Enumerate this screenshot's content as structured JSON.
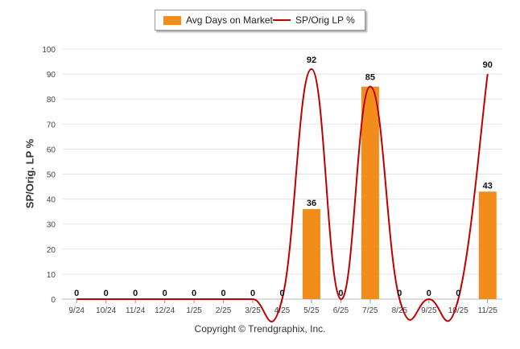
{
  "chart_data": {
    "type": "bar",
    "categories": [
      "9/24",
      "10/24",
      "11/24",
      "12/24",
      "1/25",
      "2/25",
      "3/25",
      "4/25",
      "5/25",
      "6/25",
      "7/25",
      "8/25",
      "9/25",
      "10/25",
      "11/25"
    ],
    "series": [
      {
        "name": "Avg Days on Market",
        "type": "bar",
        "color": "#f28c1b",
        "values": [
          0,
          0,
          0,
          0,
          0,
          0,
          0,
          0,
          36,
          0,
          85,
          0,
          0,
          0,
          43
        ]
      },
      {
        "name": "SP/Orig LP %",
        "type": "line",
        "color": "#c00000",
        "values": [
          0,
          0,
          0,
          0,
          0,
          0,
          0,
          0,
          92,
          0,
          85,
          0,
          0,
          0,
          90
        ]
      }
    ],
    "line_labels": [
      "0",
      "0",
      "0",
      "0",
      "0",
      "0",
      "0",
      "0",
      "92",
      "0",
      "85",
      "0",
      "0",
      "0",
      "90"
    ],
    "bar_labels": {
      "8": "36",
      "14": "43"
    },
    "ylabel": "SP/Orig. LP %",
    "ylim": [
      0,
      100
    ],
    "yticks": [
      0,
      10,
      20,
      30,
      40,
      50,
      60,
      70,
      80,
      90,
      100
    ],
    "grid": true,
    "legend_position": "top-center"
  },
  "footer": "Copyright © Trendgraphix, Inc."
}
